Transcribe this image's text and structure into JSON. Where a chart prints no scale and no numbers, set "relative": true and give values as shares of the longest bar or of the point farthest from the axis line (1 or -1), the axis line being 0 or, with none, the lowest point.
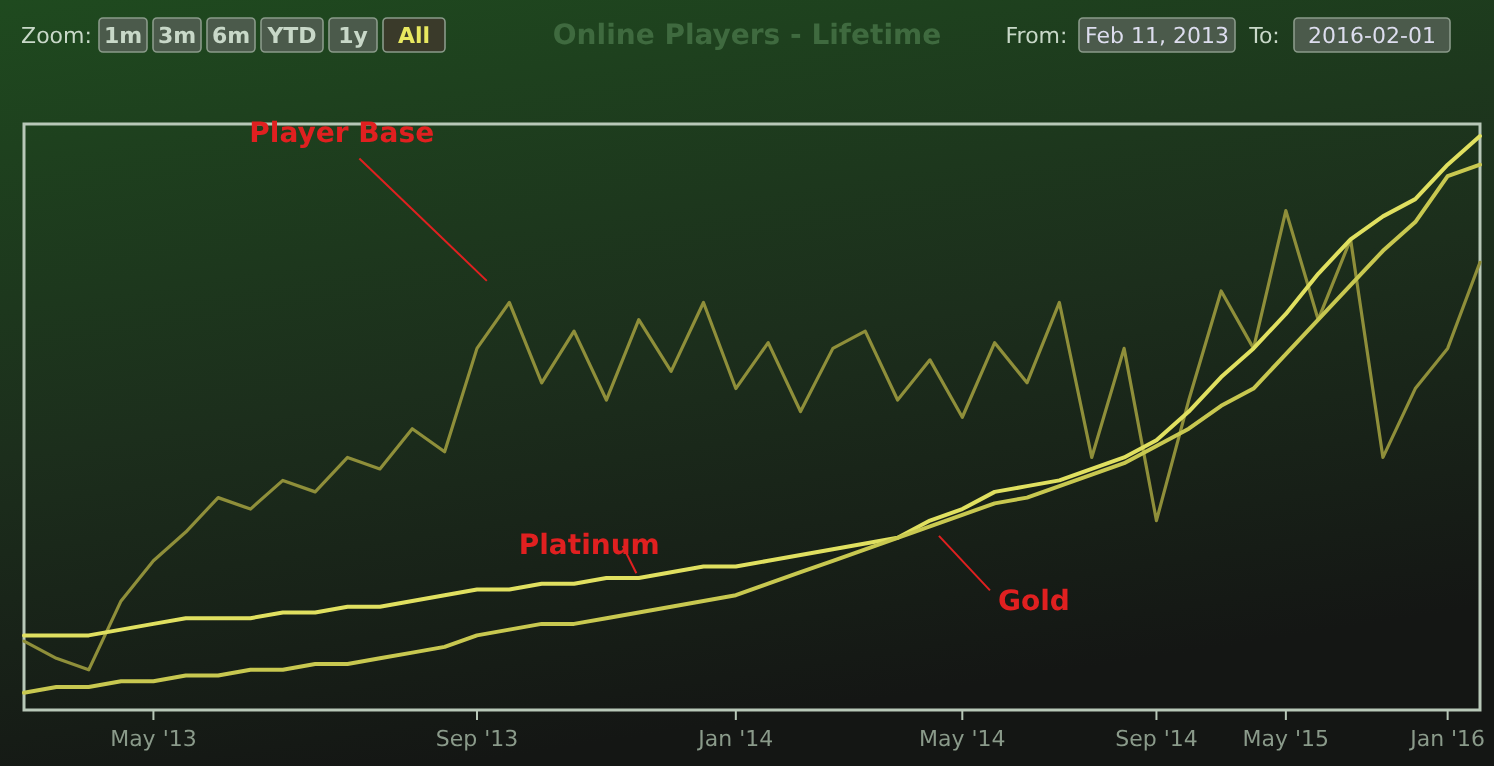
{
  "chart_data": {
    "type": "line",
    "title": "Online Players - Lifetime",
    "relative": true,
    "categories": [
      null,
      null,
      null,
      null,
      "May '13",
      null,
      null,
      null,
      null,
      null,
      null,
      null,
      null,
      null,
      "Sep '13",
      null,
      null,
      null,
      null,
      null,
      null,
      null,
      "Jan '14",
      null,
      null,
      null,
      null,
      null,
      null,
      "May '14",
      null,
      null,
      null,
      null,
      null,
      "Sep '14",
      null,
      null,
      null,
      "May '15",
      null,
      null,
      null,
      null,
      "Jan '16",
      null
    ],
    "series": [
      {
        "name": "Player Base",
        "color": "#8f8f3a",
        "values": [
          0.12,
          0.09,
          0.07,
          0.19,
          0.26,
          0.31,
          0.37,
          0.35,
          0.4,
          0.38,
          0.44,
          0.42,
          0.49,
          0.45,
          0.63,
          0.71,
          0.57,
          0.66,
          0.54,
          0.68,
          0.59,
          0.71,
          0.56,
          0.64,
          0.52,
          0.63,
          0.66,
          0.54,
          0.61,
          0.51,
          0.64,
          0.57,
          0.71,
          0.44,
          0.63,
          0.33,
          0.54,
          0.73,
          0.63,
          0.87,
          0.68,
          0.82,
          0.44,
          0.56,
          0.63,
          0.78
        ]
      },
      {
        "name": "Platinum",
        "color": "#e0e060",
        "values": [
          0.13,
          0.13,
          0.13,
          0.14,
          0.15,
          0.16,
          0.16,
          0.16,
          0.17,
          0.17,
          0.18,
          0.18,
          0.19,
          0.2,
          0.21,
          0.21,
          0.22,
          0.22,
          0.23,
          0.23,
          0.24,
          0.25,
          0.25,
          0.26,
          0.27,
          0.28,
          0.29,
          0.3,
          0.33,
          0.35,
          0.38,
          0.39,
          0.4,
          0.42,
          0.44,
          0.47,
          0.52,
          0.58,
          0.63,
          0.69,
          0.76,
          0.82,
          0.86,
          0.89,
          0.95,
          1.0
        ]
      },
      {
        "name": "Gold",
        "color": "#c8c850",
        "values": [
          0.03,
          0.04,
          0.04,
          0.05,
          0.05,
          0.06,
          0.06,
          0.07,
          0.07,
          0.08,
          0.08,
          0.09,
          0.1,
          0.11,
          0.13,
          0.14,
          0.15,
          0.15,
          0.16,
          0.17,
          0.18,
          0.19,
          0.2,
          0.22,
          0.24,
          0.26,
          0.28,
          0.3,
          0.32,
          0.34,
          0.36,
          0.37,
          0.39,
          0.41,
          0.43,
          0.46,
          0.49,
          0.53,
          0.56,
          0.62,
          0.68,
          0.74,
          0.8,
          0.85,
          0.93,
          0.95
        ]
      }
    ],
    "annotations": [
      "Zoom:",
      "1m",
      "3m",
      "6m",
      "YTD",
      "1y",
      "All",
      "From:",
      "Feb 11, 2013",
      "To:",
      "2016-02-01"
    ]
  }
}
